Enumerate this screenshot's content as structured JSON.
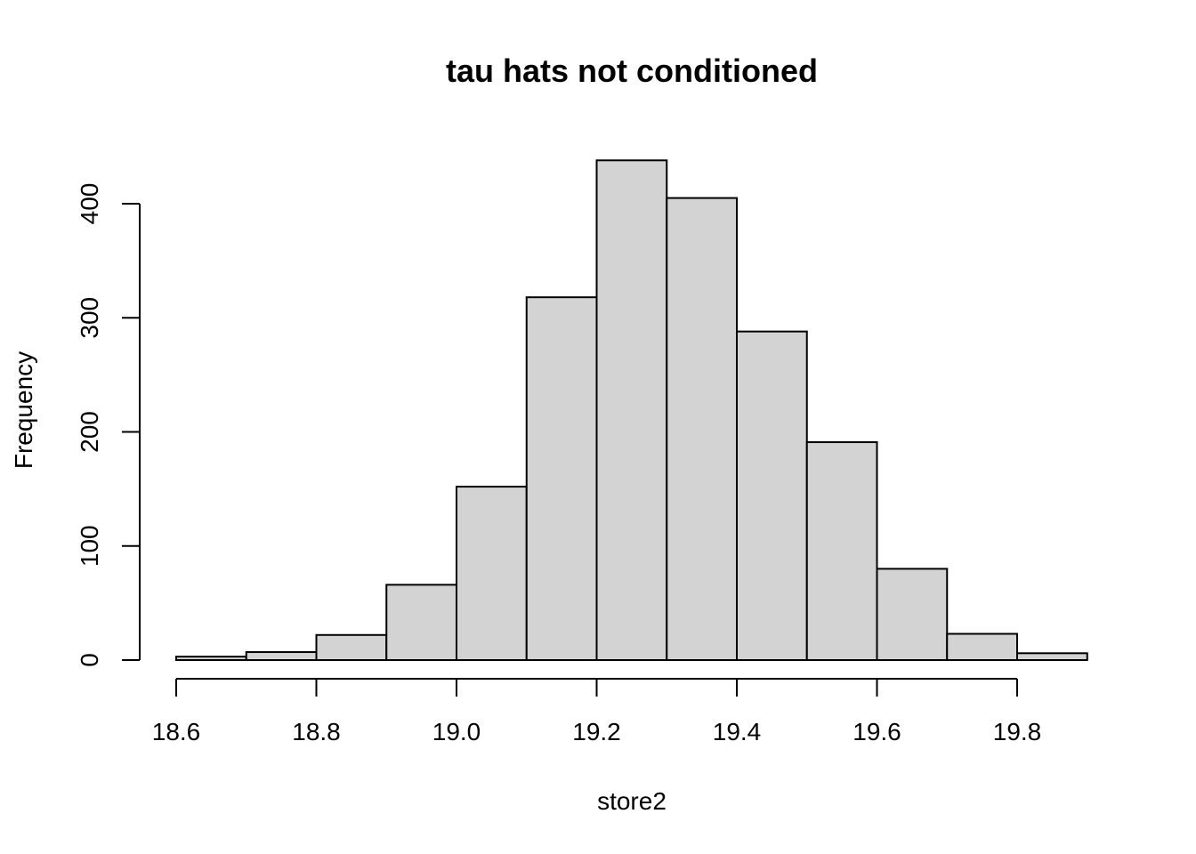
{
  "chart_data": {
    "type": "bar",
    "title": "tau hats not conditioned",
    "xlabel": "store2",
    "ylabel": "Frequency",
    "bin_edges": [
      18.6,
      18.7,
      18.8,
      18.9,
      19.0,
      19.1,
      19.2,
      19.3,
      19.4,
      19.5,
      19.6,
      19.7,
      19.8,
      19.9
    ],
    "values": [
      3,
      7,
      22,
      66,
      152,
      318,
      438,
      405,
      288,
      191,
      80,
      23,
      6
    ],
    "x_ticks": [
      "18.6",
      "18.8",
      "19.0",
      "19.2",
      "19.4",
      "19.6",
      "19.8"
    ],
    "y_ticks": [
      "0",
      "100",
      "200",
      "300",
      "400"
    ],
    "xlim": [
      18.6,
      19.8
    ],
    "ylim": [
      0,
      400
    ],
    "bar_fill": "#d3d3d3",
    "bar_stroke": "#000000",
    "grid": false,
    "legend": "none"
  }
}
